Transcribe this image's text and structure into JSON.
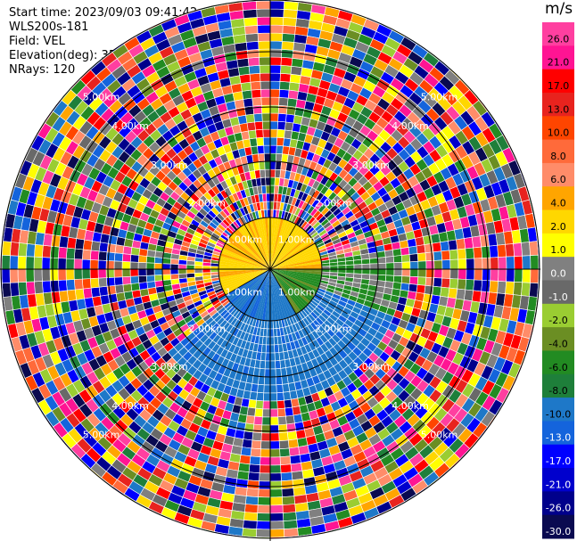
{
  "header": {
    "start_time": "Start time: 2023/09/03 09:41:42",
    "station": "WLS200s-181",
    "field": "Field: VEL",
    "elevation": "Elevation(deg): 35.30",
    "nrays": "NRays: 120"
  },
  "chart_data": {
    "type": "heatmap",
    "subtype": "polar-ppi",
    "field": "VEL",
    "n_rays": 120,
    "range_ring_labels": [
      "1.00km",
      "2.00km",
      "3.00km",
      "4.00km",
      "5.00km"
    ],
    "colorbar": {
      "unit": "m/s",
      "tick_labels": [
        "26.0",
        "21.0",
        "17.0",
        "13.0",
        "10.0",
        "8.0",
        "6.0",
        "4.0",
        "2.0",
        "1.0",
        "0.0",
        "-1.0",
        "-2.0",
        "-4.0",
        "-6.0",
        "-8.0",
        "-10.0",
        "-13.0",
        "-17.0",
        "-21.0",
        "-26.0",
        "-30.0"
      ],
      "colors": [
        "#ff3fa0",
        "#ff1493",
        "#ff0000",
        "#e8231e",
        "#ff4500",
        "#ff6a3a",
        "#ff8c69",
        "#ffa500",
        "#ffd700",
        "#ffff00",
        "#808080",
        "#696969",
        "#9acd32",
        "#6b8e23",
        "#228b22",
        "#1e7f3a",
        "#1e78c8",
        "#1464dc",
        "#0000ff",
        "#0000cd",
        "#00008b",
        "#0a0a50"
      ]
    }
  }
}
